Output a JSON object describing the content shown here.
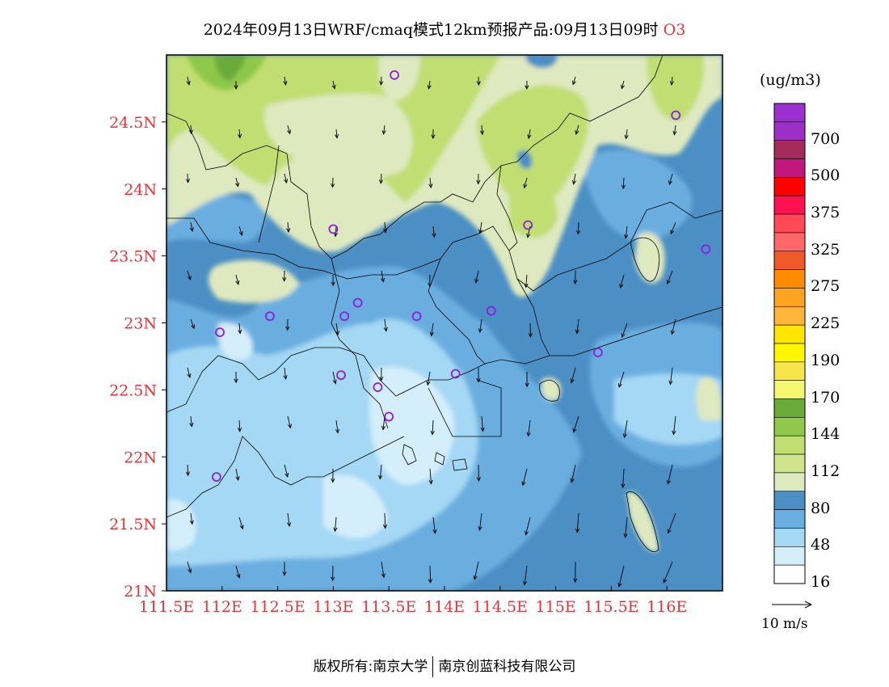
{
  "title": {
    "text": "2024年09月13日WRF/cmaq模式12km预报产品:09月13日09时",
    "species": "O3"
  },
  "axes": {
    "lat_ticks": [
      "24.5N",
      "24N",
      "23.5N",
      "23N",
      "22.5N",
      "22N",
      "21.5N",
      "21N"
    ],
    "lon_ticks": [
      "111.5E",
      "112E",
      "112.5E",
      "113E",
      "113.5E",
      "114E",
      "114.5E",
      "115E",
      "115.5E",
      "116E"
    ],
    "lon_range": [
      111.5,
      116.5
    ],
    "lat_range": [
      21.0,
      25.0
    ]
  },
  "colorbar": {
    "unit": "(ug/m3)",
    "labels": [
      "700",
      "500",
      "375",
      "325",
      "275",
      "225",
      "190",
      "170",
      "144",
      "112",
      "80",
      "48",
      "16"
    ],
    "colors": [
      "#9b2fd0",
      "#9b30c7",
      "#a52a5c",
      "#c0187d",
      "#ff0000",
      "#ff1050",
      "#ff4858",
      "#ff6868",
      "#f05a28",
      "#ff8c00",
      "#ffa422",
      "#ffb43a",
      "#ffe600",
      "#fff700",
      "#f7e64a",
      "#f4f870",
      "#6aaa3a",
      "#8fc84a",
      "#c1de72",
      "#cfe48c",
      "#dfe9bf",
      "#4b8fc4",
      "#6aaee0",
      "#a4d8f4",
      "#d4eefc",
      "#ffffff"
    ]
  },
  "map": {
    "stations": [
      {
        "lon": 113.55,
        "lat": 24.85
      },
      {
        "lon": 116.08,
        "lat": 24.55
      },
      {
        "lon": 113.0,
        "lat": 23.7
      },
      {
        "lon": 114.75,
        "lat": 23.73
      },
      {
        "lon": 116.35,
        "lat": 23.55
      },
      {
        "lon": 113.22,
        "lat": 23.15
      },
      {
        "lon": 112.43,
        "lat": 23.05
      },
      {
        "lon": 113.1,
        "lat": 23.05
      },
      {
        "lon": 113.75,
        "lat": 23.05
      },
      {
        "lon": 114.42,
        "lat": 23.09
      },
      {
        "lon": 111.98,
        "lat": 22.93
      },
      {
        "lon": 115.38,
        "lat": 22.78
      },
      {
        "lon": 113.07,
        "lat": 22.61
      },
      {
        "lon": 113.4,
        "lat": 22.52
      },
      {
        "lon": 114.1,
        "lat": 22.62
      },
      {
        "lon": 113.5,
        "lat": 22.3
      },
      {
        "lon": 111.95,
        "lat": 21.85
      }
    ]
  },
  "wind_scale": {
    "label": "10 m/s"
  },
  "footer": {
    "left": "版权所有:南京大学",
    "right": "南京创蓝科技有限公司"
  }
}
